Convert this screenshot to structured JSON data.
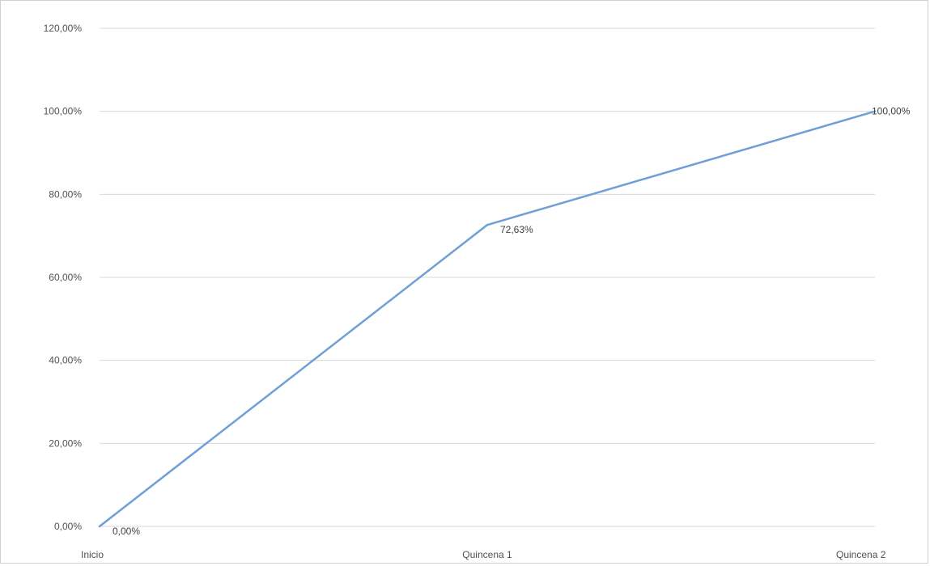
{
  "chart_data": {
    "type": "line",
    "categories": [
      "Inicio",
      "Quincena 1",
      "Quincena 2"
    ],
    "series": [
      {
        "values": [
          0,
          72.63,
          100
        ],
        "data_labels": [
          "0,00%",
          "72,63%",
          "100,00%"
        ],
        "color": "#6f9fd4"
      }
    ],
    "ylim": [
      0,
      120
    ],
    "y_ticks": [
      {
        "value": 0,
        "label": "0,00%"
      },
      {
        "value": 20,
        "label": "20,00%"
      },
      {
        "value": 40,
        "label": "40,00%"
      },
      {
        "value": 60,
        "label": "60,00%"
      },
      {
        "value": 80,
        "label": "80,00%"
      },
      {
        "value": 100,
        "label": "100,00%"
      },
      {
        "value": 120,
        "label": "120,00%"
      }
    ],
    "grid": true,
    "gridline_color": "#d9d9d9",
    "legend": "none"
  }
}
